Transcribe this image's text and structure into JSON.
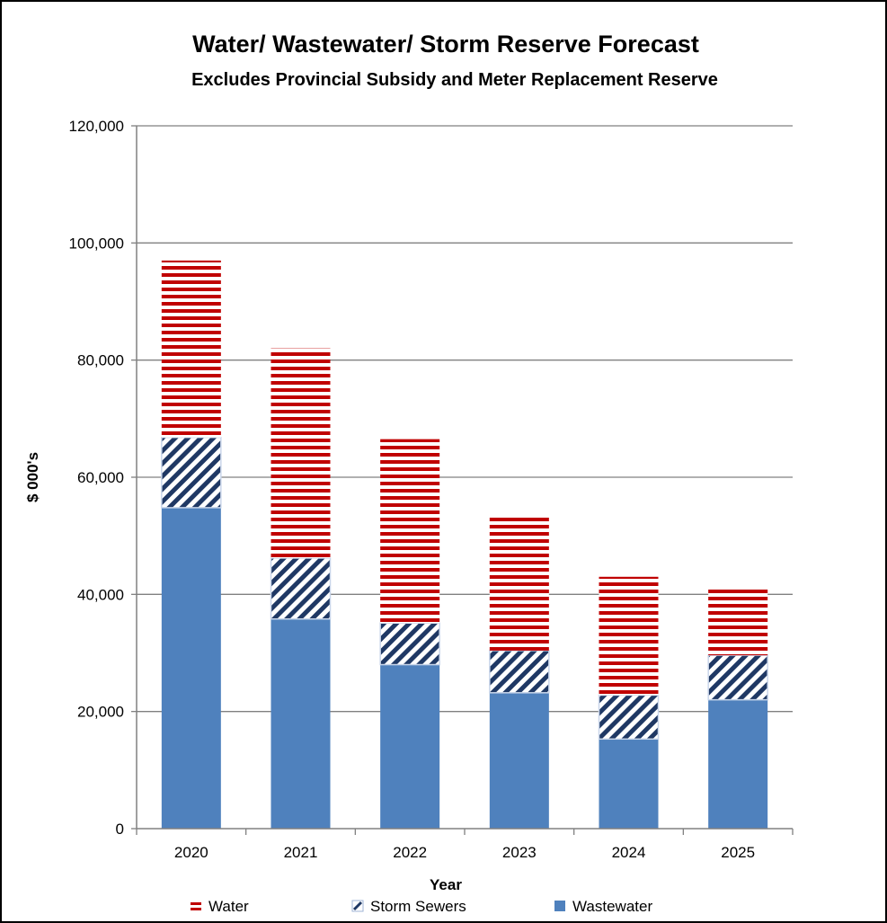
{
  "chart_data": {
    "type": "bar",
    "stacked": true,
    "title": "Water/ Wastewater/ Storm Reserve Forecast",
    "subtitle": "Excludes Provincial Subsidy and Meter Replacement Reserve",
    "xlabel": "Year",
    "ylabel": "$ 000's",
    "categories": [
      "2020",
      "2021",
      "2022",
      "2023",
      "2024",
      "2025"
    ],
    "ylim": [
      0,
      120000
    ],
    "yticks": [
      0,
      20000,
      40000,
      60000,
      80000,
      100000,
      120000
    ],
    "ytick_labels": [
      "0",
      "20,000",
      "40,000",
      "60,000",
      "80,000",
      "100,000",
      "120,000"
    ],
    "grid": true,
    "legend": "bottom",
    "series": [
      {
        "name": "Wastewater",
        "values": [
          54800,
          35800,
          28000,
          23200,
          15300,
          22000
        ],
        "color": "#4f81bd",
        "pattern": "solid"
      },
      {
        "name": "Storm Sewers",
        "values": [
          12000,
          10400,
          7100,
          7200,
          7500,
          7600
        ],
        "color": "#1f3864",
        "pattern": "diagonal-stripes"
      },
      {
        "name": "Water",
        "values": [
          30200,
          35800,
          31400,
          23000,
          20200,
          11400
        ],
        "color": "#c00000",
        "pattern": "horizontal-stripes"
      }
    ],
    "legend_order": [
      "Water",
      "Storm Sewers",
      "Wastewater"
    ]
  }
}
